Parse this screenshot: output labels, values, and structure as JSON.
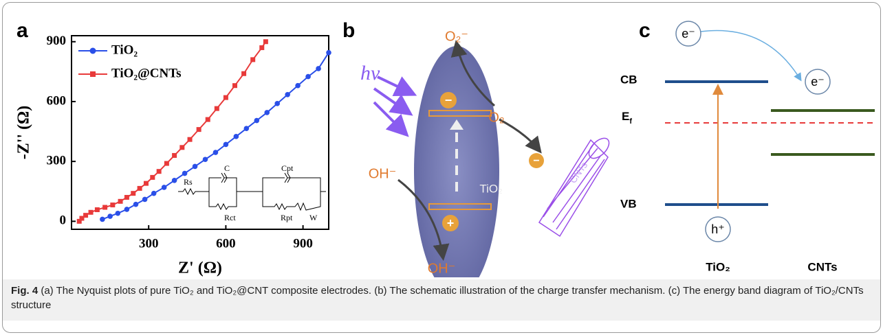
{
  "chart_data": {
    "type": "line",
    "panel_label": "a",
    "x_label": "Z' (Ω)",
    "y_label": "-Z'' (Ω)",
    "xlim": [
      0,
      1000
    ],
    "xticks": [
      300,
      600,
      900
    ],
    "ylim": [
      -40,
      930
    ],
    "yticks": [
      0,
      300,
      600,
      900
    ],
    "legend": "top-left",
    "series": [
      {
        "name": "TiO₂",
        "color": "#2a4fe8",
        "marker": "circle",
        "x": [
          120,
          150,
          180,
          215,
          250,
          285,
          320,
          360,
          400,
          440,
          480,
          520,
          560,
          600,
          640,
          680,
          720,
          760,
          800,
          840,
          880,
          920,
          960,
          1000
        ],
        "values": [
          10,
          25,
          40,
          60,
          85,
          110,
          140,
          170,
          205,
          240,
          275,
          310,
          345,
          385,
          425,
          465,
          505,
          545,
          590,
          635,
          680,
          725,
          765,
          845
        ]
      },
      {
        "name": "TiO₂@CNTs",
        "color": "#e83a3a",
        "marker": "square",
        "x": [
          30,
          40,
          55,
          75,
          100,
          130,
          160,
          190,
          215,
          240,
          265,
          290,
          315,
          340,
          370,
          400,
          430,
          460,
          495,
          530,
          565,
          600,
          635,
          670,
          705,
          740,
          755
        ],
        "values": [
          0,
          15,
          30,
          45,
          58,
          70,
          82,
          100,
          120,
          140,
          165,
          190,
          220,
          250,
          290,
          330,
          370,
          410,
          460,
          510,
          565,
          620,
          680,
          740,
          810,
          870,
          900
        ]
      }
    ],
    "annotations": [
      "Rs",
      "C",
      "Rct",
      "Cpt",
      "Rpt",
      "W"
    ]
  },
  "panel_b": {
    "label": "b",
    "light": "hν",
    "superoxide": "O₂⁻",
    "oxygen": "O₂",
    "hydroxide_in": "OH⁻",
    "hydroxide_out": "OH⁻",
    "electron": "−",
    "hole": "+",
    "semiconductor": "TiO₂",
    "nanotube": "CNTs"
  },
  "panel_c": {
    "label": "c",
    "electron_1": "e⁻",
    "electron_2": "e⁻",
    "hole": "h⁺",
    "cb": "CB",
    "ef": "E",
    "ef_sub": "f",
    "vb": "VB",
    "left_label": "TiO₂",
    "right_label": "CNTs"
  },
  "caption": {
    "label": "Fig. 4",
    "text": "(a) The Nyquist plots of pure TiO₂ and TiO₂@CNT composite electrodes. (b) The schematic illustration of the charge transfer mechanism. (c) The energy band diagram of TiO₂/CNTs structure"
  }
}
